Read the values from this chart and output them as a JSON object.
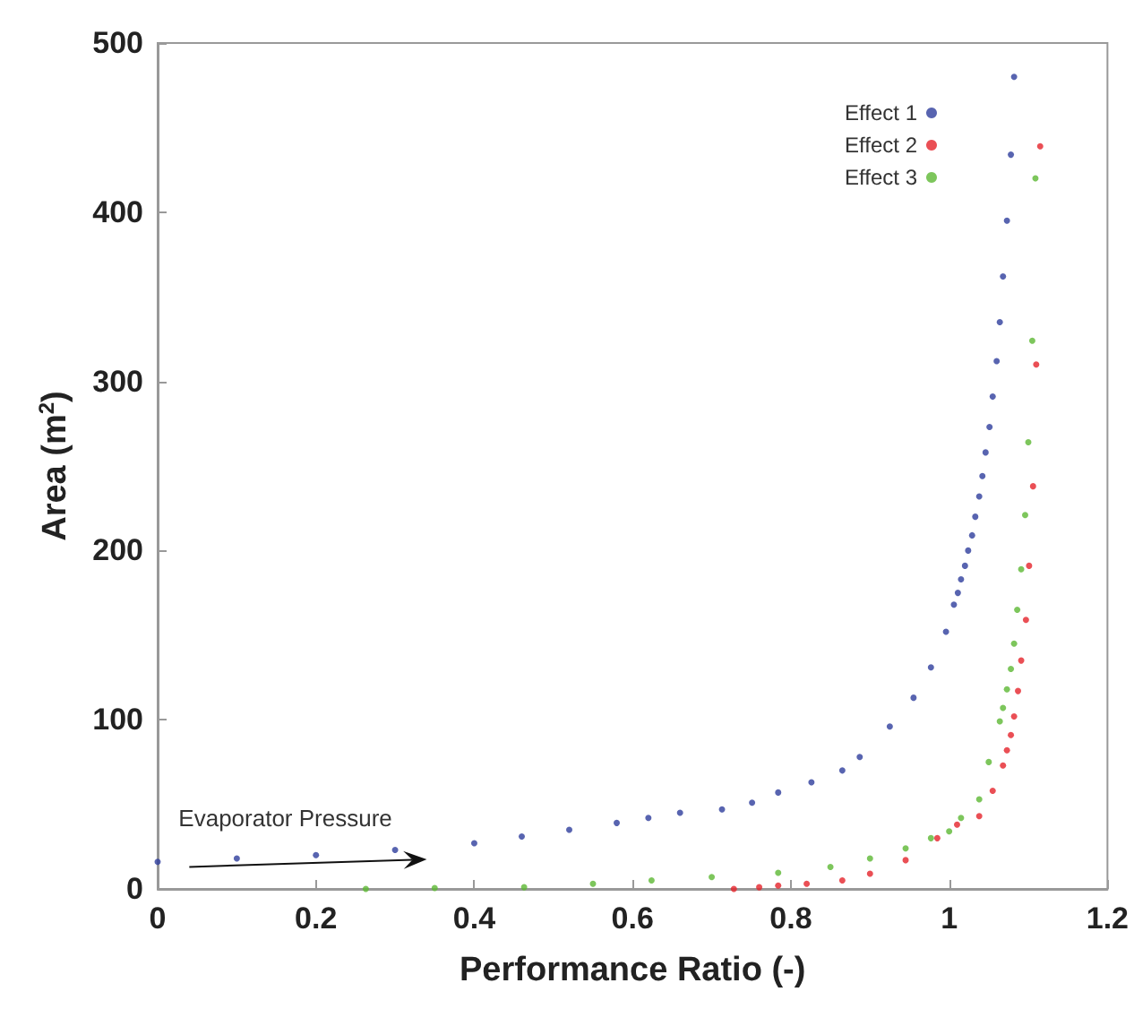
{
  "chart_data": {
    "type": "scatter",
    "xlabel": "Performance Ratio (-)",
    "ylabel": "Area (m$^{2}$)",
    "annotations": [
      "Evaporator Pressure"
    ],
    "xlim": [
      0,
      1.2
    ],
    "xticks": [
      0,
      0.2,
      0.4,
      0.6,
      0.8,
      1,
      1.2
    ],
    "ylim": [
      0,
      500
    ],
    "yticks": [
      0,
      100,
      200,
      300,
      400,
      500
    ],
    "grid": false,
    "legend": "top right",
    "marker": "circle",
    "series": [
      {
        "name": "Effect 1",
        "color": "#2e3d9c",
        "x": [
          0,
          0.1,
          0.2,
          0.3,
          0.4,
          0.46,
          0.52,
          0.58,
          0.62,
          0.66,
          0.713,
          0.751,
          0.784,
          0.826,
          0.865,
          0.887,
          0.925,
          0.955,
          0.977,
          0.996,
          1.006,
          1.011,
          1.015,
          1.02,
          1.024,
          1.029,
          1.033,
          1.038,
          1.042,
          1.046,
          1.051,
          1.055,
          1.06,
          1.064,
          1.068,
          1.073,
          1.078,
          1.082
        ],
        "values": [
          16,
          18,
          20,
          23,
          27,
          31,
          35,
          39,
          42,
          45,
          47,
          51,
          57,
          63,
          70,
          78,
          96,
          113,
          131,
          152,
          168,
          175,
          183,
          191,
          200,
          209,
          220,
          232,
          244,
          258,
          273,
          291,
          312,
          335,
          362,
          395,
          434,
          480
        ]
      },
      {
        "name": "Effect 2",
        "color": "#e5232a",
        "x": [
          0.728,
          0.76,
          0.784,
          0.82,
          0.865,
          0.9,
          0.945,
          0.985,
          1.01,
          1.038,
          1.055,
          1.068,
          1.073,
          1.078,
          1.082,
          1.087,
          1.091,
          1.097,
          1.101,
          1.106,
          1.11,
          1.115
        ],
        "values": [
          0,
          1,
          2,
          3,
          5,
          9,
          17,
          30,
          38,
          43,
          58,
          73,
          82,
          91,
          102,
          117,
          135,
          159,
          191,
          238,
          310,
          439
        ]
      },
      {
        "name": "Effect 3",
        "color": "#5cb833",
        "x": [
          0.263,
          0.35,
          0.463,
          0.55,
          0.624,
          0.7,
          0.784,
          0.85,
          0.9,
          0.945,
          0.977,
          1.0,
          1.015,
          1.038,
          1.05,
          1.064,
          1.068,
          1.073,
          1.078,
          1.082,
          1.086,
          1.091,
          1.096,
          1.1,
          1.105,
          1.109
        ],
        "values": [
          0,
          0.5,
          1,
          3,
          5,
          7,
          9.5,
          13,
          18,
          24,
          30,
          34,
          42,
          53,
          75,
          99,
          107,
          118,
          130,
          145,
          165,
          189,
          221,
          264,
          324,
          420
        ]
      }
    ]
  }
}
